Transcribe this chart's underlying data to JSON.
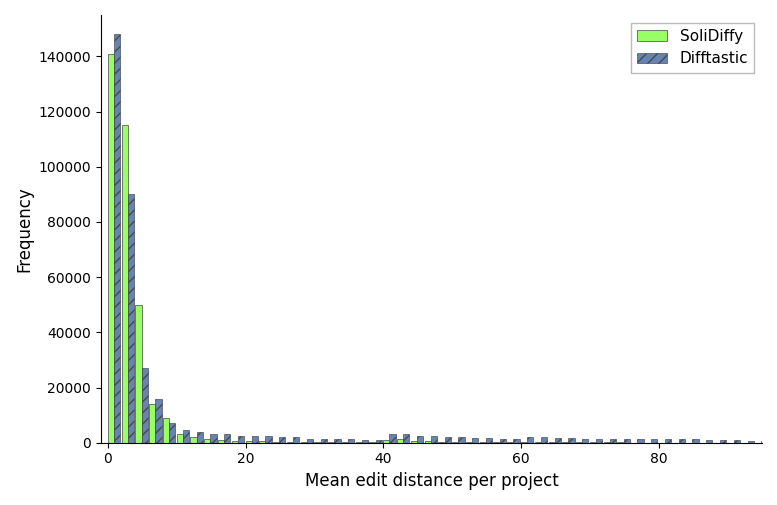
{
  "xlabel": "Mean edit distance per project",
  "ylabel": "Frequency",
  "legend_labels": [
    "SoliDiffy",
    "Difftastic"
  ],
  "solidiffy_color": "#99ff66",
  "difftastic_color": "#5577aa",
  "bin_edges": [
    0,
    2,
    4,
    6,
    8,
    10,
    12,
    14,
    16,
    18,
    20,
    22,
    24,
    26,
    28,
    30,
    32,
    34,
    36,
    38,
    40,
    42,
    44,
    46,
    48,
    50,
    52,
    54,
    56,
    58,
    60,
    62,
    64,
    66,
    68,
    70,
    72,
    74,
    76,
    78,
    80,
    82,
    84,
    86,
    88,
    90,
    92,
    94
  ],
  "solidiffy_values": [
    141000,
    115000,
    50000,
    14000,
    9000,
    3000,
    2000,
    1500,
    1000,
    700,
    500,
    500,
    400,
    400,
    300,
    300,
    250,
    200,
    200,
    200,
    1000,
    1500,
    500,
    500,
    400,
    400,
    300,
    300,
    250,
    200,
    200,
    150,
    150,
    150,
    100,
    100,
    100,
    100,
    80,
    80,
    80,
    70,
    70,
    60,
    60,
    50,
    50,
    40
  ],
  "difftastic_values": [
    148000,
    90000,
    27000,
    16000,
    7000,
    4500,
    4000,
    3000,
    3000,
    2500,
    2500,
    2500,
    2000,
    2000,
    1500,
    1500,
    1500,
    1200,
    1000,
    900,
    3000,
    3000,
    2500,
    2500,
    2000,
    2000,
    1800,
    1800,
    1500,
    1500,
    2000,
    2000,
    1800,
    1800,
    1500,
    1500,
    1500,
    1500,
    1200,
    1200,
    1500,
    1200,
    1200,
    1000,
    1000,
    1000,
    800,
    800
  ],
  "xlim": [
    -1,
    95
  ],
  "ylim": [
    0,
    155000
  ],
  "yticks": [
    0,
    20000,
    40000,
    60000,
    80000,
    100000,
    120000,
    140000
  ],
  "bar_width": 0.9
}
